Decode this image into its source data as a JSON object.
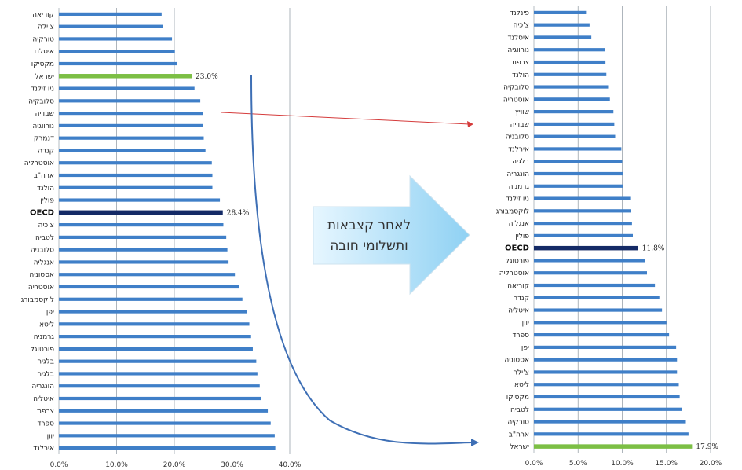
{
  "colors": {
    "bar": "#3f7fc8",
    "oecd": "#142a66",
    "israel": "#7cbf45",
    "grid": "#9aa3ab",
    "axis": "#b6bcc3",
    "red_arrow": "#d53c3c",
    "blue_arrow": "#3e6fb5",
    "callout_fill": "#a9dcf6"
  },
  "callout": {
    "line1": "לאחר קצבאות",
    "line2": "ותשלומי חובה"
  },
  "chart_data": [
    {
      "type": "bar",
      "orientation": "horizontal",
      "xlim": [
        0,
        40
      ],
      "x_ticks": [
        "0.0%",
        "10.0%",
        "20.0%",
        "30.0%",
        "40.0%"
      ],
      "categories": [
        "קוריאה",
        "צ'ילה",
        "טורקיה",
        "איסלנד",
        "מקסיקו",
        "ישראל",
        "ניו זילנד",
        "סלובקיה",
        "שבדיה",
        "נורווגיה",
        "דנמרק",
        "קנדה",
        "אוסטרליה",
        "ארה\"ב",
        "הולנד",
        "פולין",
        "OECD",
        "צ'כיה",
        "לטביה",
        "סלובניה",
        "אנגליה",
        "אסטוניה",
        "אוסטריה",
        "לוקסמבורג",
        "יפן",
        "ליטא",
        "גרמניה",
        "פורטוגל",
        "בלגיה",
        "בלגיה",
        "הונגריה",
        "איטליה",
        "צרפת",
        "ספרד",
        "יוון",
        "אירלנד"
      ],
      "values": [
        17.8,
        18.0,
        19.6,
        20.1,
        20.5,
        23.0,
        23.5,
        24.5,
        24.9,
        25.0,
        25.1,
        25.4,
        26.5,
        26.6,
        26.6,
        27.9,
        28.4,
        28.5,
        29.0,
        29.2,
        29.4,
        30.5,
        31.2,
        31.8,
        32.6,
        33.0,
        33.3,
        33.6,
        34.2,
        34.4,
        34.8,
        35.1,
        36.2,
        36.7,
        37.4,
        37.5
      ],
      "highlights": {
        "OECD": "oecd",
        "ישראל": "israel"
      },
      "value_labels": {
        "ישראל": "23.0%",
        "OECD": "28.4%"
      }
    },
    {
      "type": "bar",
      "orientation": "horizontal",
      "xlim": [
        0,
        20
      ],
      "x_ticks": [
        "0.0%",
        "5.0%",
        "10.0%",
        "15.0%",
        "20.0%"
      ],
      "categories": [
        "פינלנד",
        "צ'כיה",
        "איסלנד",
        "נורווגיה",
        "צרפת",
        "הולנד",
        "סלובקיה",
        "אוסטריה",
        "שוויץ",
        "שבדיה",
        "סלובניה",
        "אירלנד",
        "בלגיה",
        "הונגריה",
        "גרמניה",
        "ניו זילנד",
        "לוקסמבורג",
        "אנגליה",
        "פולין",
        "OECD",
        "פורטוגל",
        "אוסטרליה",
        "קוריאה",
        "קנדה",
        "איטליה",
        "יוון",
        "ספרד",
        "יפן",
        "אסטוניה",
        "צ'ילה",
        "ליטא",
        "מקסיקו",
        "לטביה",
        "טורקיה",
        "ארה\"ב",
        "ישראל"
      ],
      "values": [
        5.9,
        6.3,
        6.5,
        8.0,
        8.1,
        8.2,
        8.4,
        8.6,
        9.0,
        9.1,
        9.2,
        9.9,
        10.0,
        10.1,
        10.1,
        10.9,
        11.0,
        11.1,
        11.2,
        11.8,
        12.6,
        12.8,
        13.7,
        14.2,
        14.5,
        15.0,
        15.3,
        16.1,
        16.2,
        16.2,
        16.4,
        16.5,
        16.8,
        17.2,
        17.5,
        17.9
      ],
      "highlights": {
        "OECD": "oecd",
        "ישראל": "israel"
      },
      "value_labels": {
        "OECD": "11.8%",
        "ישראל": "17.9%"
      }
    }
  ]
}
